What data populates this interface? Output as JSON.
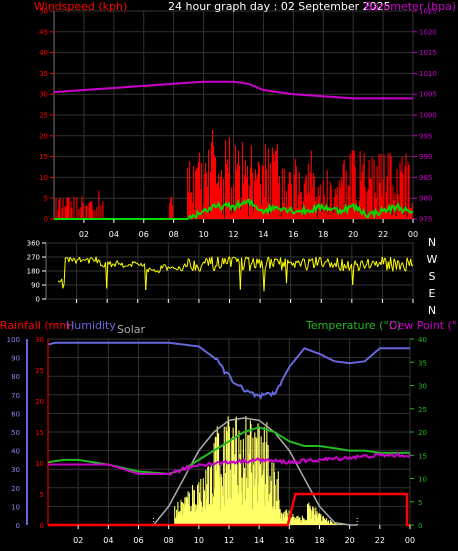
{
  "colors": {
    "wind": "#ff0000",
    "gust": "#00dd00",
    "baro": "#cc00cc",
    "dir": "#ffff00",
    "rain": "#ff0000",
    "humidity": "#6666dd",
    "solar": "#ffff66",
    "solar_max": "#aaaaaa",
    "temp": "#22bb22",
    "dew": "#cc00cc",
    "grid": "#333333",
    "frame": "#777777"
  },
  "chart_data": [
    {
      "type": "line",
      "title": "24 hour graph day : 02 September 2025",
      "left_label": "Windspeed (kph)",
      "right_label": "Barometer (hpa)",
      "x_ticks": [
        "02",
        "04",
        "06",
        "08",
        "10",
        "12",
        "14",
        "16",
        "18",
        "20",
        "22",
        "00"
      ],
      "y_left_ticks": [
        0,
        5,
        10,
        15,
        20,
        25,
        30,
        35,
        40,
        45,
        50
      ],
      "y_right_ticks": [
        975,
        980,
        985,
        990,
        995,
        1000,
        1005,
        1010,
        1015,
        1020,
        1025
      ],
      "ylim_left": [
        0,
        50
      ],
      "ylim_right": [
        975,
        1025
      ],
      "grid": true,
      "series": [
        {
          "key": "barometer",
          "x": [
            0,
            2,
            4,
            6,
            8,
            10,
            12,
            13,
            14,
            15,
            16,
            18,
            20,
            22,
            24
          ],
          "y": [
            1005.5,
            1006,
            1006.5,
            1007,
            1007.5,
            1008,
            1008,
            1007.5,
            1006,
            1005.5,
            1005,
            1004.5,
            1004,
            1004,
            1004
          ]
        },
        {
          "key": "gust",
          "x": [
            0,
            8.9,
            9.5,
            10,
            11,
            12,
            13,
            14,
            15,
            16,
            17,
            18,
            19,
            20,
            21,
            22,
            23,
            24
          ],
          "y": [
            0,
            0,
            1,
            2,
            3,
            3,
            4,
            2,
            3,
            2,
            2,
            3,
            2,
            3,
            1,
            2,
            3,
            1
          ]
        }
      ]
    },
    {
      "type": "scatter",
      "right_labels": [
        "N",
        "W",
        "S",
        "E",
        "N"
      ],
      "y_ticks": [
        360,
        270,
        180,
        90,
        0
      ],
      "ylim": [
        0,
        360
      ],
      "x_ticks": [
        "02",
        "04",
        "06",
        "08",
        "10",
        "12",
        "14",
        "16",
        "18",
        "20",
        "22",
        "00"
      ],
      "grid": true
    },
    {
      "type": "line",
      "legend": [
        "Rainfall (mm)",
        "Humidity",
        "Solar",
        "Temperature (°C)",
        "Dew Point (°C)"
      ],
      "y_left_hum_ticks": [
        100,
        90,
        80,
        70,
        60,
        50,
        40,
        30,
        20,
        10,
        0
      ],
      "y_left_rain_ticks": [
        30,
        25,
        20,
        15,
        10,
        5,
        0
      ],
      "y_right_ticks": [
        40,
        35,
        30,
        25,
        20,
        15,
        10,
        5,
        0
      ],
      "x_ticks": [
        "02",
        "04",
        "06",
        "08",
        "10",
        "12",
        "14",
        "16",
        "18",
        "20",
        "22",
        "00"
      ],
      "ylim_humidity": [
        0,
        100
      ],
      "ylim_rain": [
        0,
        30
      ],
      "ylim_temp": [
        0,
        40
      ],
      "grid": true,
      "series": [
        {
          "key": "humidity",
          "x": [
            0,
            0.5,
            2,
            4,
            6,
            8,
            9,
            10,
            11,
            12,
            13,
            14,
            15,
            16,
            17,
            18,
            19,
            20,
            21,
            22,
            23,
            24
          ],
          "y": [
            97,
            98,
            98,
            98,
            98,
            98,
            97,
            96,
            90,
            80,
            72,
            69,
            70,
            85,
            95,
            92,
            88,
            87,
            88,
            95,
            95,
            95
          ]
        },
        {
          "key": "temperature",
          "x": [
            0,
            1,
            2,
            4,
            6,
            8,
            9,
            10,
            11,
            12,
            13,
            14,
            15,
            16,
            17,
            18,
            19,
            20,
            21,
            22,
            23,
            24
          ],
          "y": [
            13.5,
            14,
            14,
            13,
            11.5,
            11,
            12,
            14,
            16,
            18,
            20,
            21,
            20,
            18,
            17,
            17,
            16.5,
            16,
            16,
            15.5,
            15.5,
            15.5
          ]
        },
        {
          "key": "dewpoint",
          "x": [
            0,
            2,
            4,
            6,
            8,
            10,
            12,
            14,
            16,
            18,
            20,
            22,
            24
          ],
          "y": [
            13,
            13,
            13,
            11,
            11,
            13,
            13.5,
            14,
            13.5,
            14,
            14.5,
            15,
            15
          ]
        },
        {
          "key": "rainfall",
          "x": [
            0,
            15.9,
            16.4,
            18,
            20,
            22,
            23.8,
            23.8,
            24
          ],
          "y": [
            0,
            0,
            5,
            5,
            5,
            5,
            5,
            0,
            0
          ]
        },
        {
          "key": "solar_max",
          "x": [
            7,
            8,
            9,
            10,
            11,
            12,
            13,
            14,
            15,
            16,
            17,
            18,
            19,
            20,
            20.5
          ],
          "y": [
            0,
            4,
            10,
            16,
            20,
            22.5,
            23,
            22.5,
            20,
            16,
            10,
            4,
            0.5,
            0,
            0
          ]
        }
      ]
    }
  ]
}
